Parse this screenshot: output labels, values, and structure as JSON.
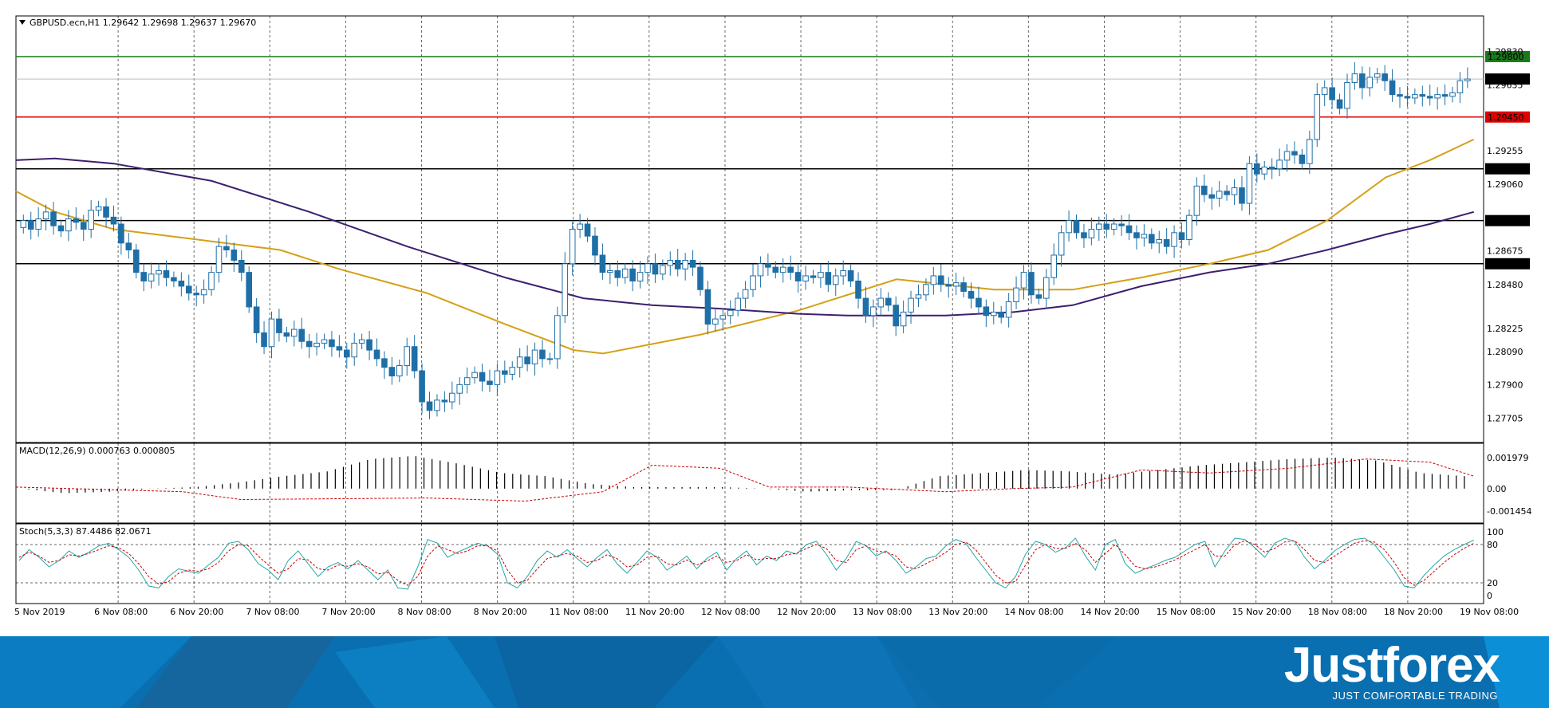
{
  "header": {
    "symbol_line": "GBPUSD.ecn,H1  1.29642 1.29698 1.29637 1.29670"
  },
  "branding": {
    "logo_text": "Justforex",
    "tagline": "JUST COMFORTABLE TRADING"
  },
  "colors": {
    "bull": "#ffffff",
    "bear": "#1f6fa7",
    "candle_outline": "#1f6fa7",
    "ma_fast": "#d4a017",
    "ma_slow": "#3c1f6e",
    "macd_signal": "#cc0000",
    "stoch_main": "#26a6a6",
    "stoch_signal": "#cc0000",
    "banner": "#0a74b8"
  },
  "chart_data": [
    {
      "type": "candlestick",
      "symbol": "GBPUSD.ecn",
      "timeframe": "H1",
      "ohlc_header": {
        "open": 1.29642,
        "high": 1.29698,
        "low": 1.29637,
        "close": 1.2967
      },
      "x_labels": [
        "5 Nov 2019",
        "6 Nov 08:00",
        "6 Nov 20:00",
        "7 Nov 08:00",
        "7 Nov 20:00",
        "8 Nov 08:00",
        "8 Nov 20:00",
        "11 Nov 08:00",
        "11 Nov 20:00",
        "12 Nov 08:00",
        "12 Nov 20:00",
        "13 Nov 08:00",
        "13 Nov 20:00",
        "14 Nov 08:00",
        "14 Nov 20:00",
        "15 Nov 08:00",
        "15 Nov 20:00",
        "18 Nov 08:00",
        "18 Nov 20:00",
        "19 Nov 08:00"
      ],
      "y_ticks": [
        "1.29830",
        "1.29635",
        "1.29255",
        "1.29060",
        "1.28675",
        "1.28480",
        "1.28225",
        "1.28090",
        "1.27900",
        "1.27705"
      ],
      "ylim": [
        1.2762,
        1.2998
      ],
      "levels": [
        {
          "value": 1.298,
          "label": "1.29800",
          "color": "#1a7a1a"
        },
        {
          "value": 1.2967,
          "label": "1.29670",
          "color": "#bbbbbb"
        },
        {
          "value": 1.2945,
          "label": "1.29450",
          "color": "#dd0000"
        },
        {
          "value": 1.2915,
          "label": "1.29150",
          "color": "#000000"
        },
        {
          "value": 1.2885,
          "label": "1.28850",
          "color": "#000000"
        },
        {
          "value": 1.286,
          "label": "1.28600",
          "color": "#000000"
        }
      ],
      "closes": [
        1.2885,
        1.288,
        1.2886,
        1.289,
        1.2882,
        1.2879,
        1.2886,
        1.2884,
        1.288,
        1.2891,
        1.2893,
        1.2887,
        1.2883,
        1.2872,
        1.2868,
        1.2855,
        1.285,
        1.2854,
        1.2856,
        1.2852,
        1.285,
        1.2847,
        1.2843,
        1.2842,
        1.2845,
        1.2855,
        1.287,
        1.2868,
        1.2862,
        1.2855,
        1.2835,
        1.282,
        1.2812,
        1.2828,
        1.282,
        1.2818,
        1.2822,
        1.2815,
        1.2812,
        1.2814,
        1.2816,
        1.2812,
        1.281,
        1.2806,
        1.2814,
        1.2816,
        1.281,
        1.2805,
        1.28,
        1.2795,
        1.2801,
        1.2812,
        1.2798,
        1.278,
        1.2775,
        1.2781,
        1.278,
        1.2785,
        1.279,
        1.2794,
        1.2797,
        1.2792,
        1.279,
        1.2798,
        1.2796,
        1.28,
        1.2806,
        1.2802,
        1.281,
        1.2805,
        1.2805,
        1.283,
        1.286,
        1.288,
        1.2883,
        1.2876,
        1.2865,
        1.2855,
        1.2856,
        1.2852,
        1.2857,
        1.285,
        1.2855,
        1.286,
        1.2854,
        1.2859,
        1.2862,
        1.2857,
        1.2862,
        1.2858,
        1.2845,
        1.2825,
        1.2828,
        1.283,
        1.2833,
        1.284,
        1.2845,
        1.2853,
        1.286,
        1.2858,
        1.2855,
        1.2858,
        1.2855,
        1.285,
        1.2853,
        1.2852,
        1.2855,
        1.2848,
        1.2853,
        1.2856,
        1.285,
        1.284,
        1.283,
        1.2835,
        1.284,
        1.2836,
        1.2824,
        1.2832,
        1.284,
        1.2842,
        1.2848,
        1.2853,
        1.2848,
        1.2847,
        1.2849,
        1.2844,
        1.284,
        1.2835,
        1.283,
        1.2832,
        1.2829,
        1.2838,
        1.2846,
        1.2855,
        1.2842,
        1.284,
        1.2852,
        1.2865,
        1.2878,
        1.2885,
        1.2878,
        1.2875,
        1.288,
        1.2883,
        1.288,
        1.2883,
        1.2882,
        1.2878,
        1.2875,
        1.2877,
        1.2872,
        1.2874,
        1.287,
        1.2878,
        1.2874,
        1.2888,
        1.2905,
        1.29,
        1.2898,
        1.2902,
        1.29,
        1.2904,
        1.2895,
        1.2918,
        1.2912,
        1.2916,
        1.2915,
        1.292,
        1.2925,
        1.2923,
        1.2918,
        1.2932,
        1.2958,
        1.2962,
        1.2955,
        1.295,
        1.2965,
        1.297,
        1.2962,
        1.2968,
        1.297,
        1.2966,
        1.2958,
        1.2957,
        1.2956,
        1.2958,
        1.2957,
        1.2956,
        1.2958,
        1.2957,
        1.2959,
        1.2966,
        1.2967
      ],
      "ma_fast": [
        [
          0,
          1.2902
        ],
        [
          40,
          1.289
        ],
        [
          100,
          1.288
        ],
        [
          200,
          1.2873
        ],
        [
          270,
          1.2868
        ],
        [
          330,
          1.2857
        ],
        [
          420,
          1.2843
        ],
        [
          500,
          1.2825
        ],
        [
          570,
          1.281
        ],
        [
          600,
          1.2808
        ],
        [
          700,
          1.2819
        ],
        [
          800,
          1.2833
        ],
        [
          900,
          1.2851
        ],
        [
          1000,
          1.2845
        ],
        [
          1080,
          1.2845
        ],
        [
          1150,
          1.2852
        ],
        [
          1220,
          1.286
        ],
        [
          1280,
          1.2868
        ],
        [
          1340,
          1.2885
        ],
        [
          1400,
          1.291
        ],
        [
          1445,
          1.292
        ],
        [
          1490,
          1.2932
        ]
      ],
      "ma_slow": [
        [
          0,
          1.292
        ],
        [
          40,
          1.2921
        ],
        [
          100,
          1.2918
        ],
        [
          200,
          1.2908
        ],
        [
          300,
          1.289
        ],
        [
          400,
          1.287
        ],
        [
          500,
          1.2852
        ],
        [
          580,
          1.284
        ],
        [
          650,
          1.2836
        ],
        [
          720,
          1.2834
        ],
        [
          800,
          1.2831
        ],
        [
          850,
          1.283
        ],
        [
          950,
          1.283
        ],
        [
          1020,
          1.2832
        ],
        [
          1080,
          1.2836
        ],
        [
          1150,
          1.2847
        ],
        [
          1220,
          1.2855
        ],
        [
          1280,
          1.286
        ],
        [
          1340,
          1.2868
        ],
        [
          1400,
          1.2877
        ],
        [
          1445,
          1.2883
        ],
        [
          1490,
          1.289
        ]
      ]
    },
    {
      "type": "histogram",
      "name": "MACD(12,26,9) 0.000763 0.000805",
      "y_ticks": [
        "0.001979",
        "0.00",
        "-0.001454"
      ],
      "ylim": [
        -0.0018,
        0.0025
      ],
      "values": [
        0.0,
        -0.0003,
        -0.0002,
        0.0,
        0.0001,
        0.0004,
        0.0008,
        0.0011,
        0.0019,
        0.0021,
        0.0016,
        0.001,
        0.0008,
        0.0003,
        0.0001,
        0.0001,
        0.0001,
        0.0,
        -0.0002,
        -0.0001,
        -0.0001,
        0.0008,
        0.001,
        0.0012,
        0.0011,
        0.0009,
        0.0012,
        0.0015,
        0.0017,
        0.0019,
        0.002,
        0.0018,
        0.001,
        0.0008
      ],
      "signal": [
        [
          0,
          0.0001
        ],
        [
          170,
          -0.0002
        ],
        [
          230,
          -0.0007
        ],
        [
          420,
          -0.0006
        ],
        [
          520,
          -0.0008
        ],
        [
          600,
          -0.0002
        ],
        [
          650,
          0.0015
        ],
        [
          720,
          0.0013
        ],
        [
          770,
          0.0001
        ],
        [
          850,
          0.0001
        ],
        [
          950,
          -0.0002
        ],
        [
          1020,
          0.0
        ],
        [
          1080,
          0.0001
        ],
        [
          1150,
          0.0012
        ],
        [
          1220,
          0.001
        ],
        [
          1300,
          0.0013
        ],
        [
          1380,
          0.0019
        ],
        [
          1445,
          0.0017
        ],
        [
          1490,
          0.0008
        ]
      ]
    },
    {
      "type": "line",
      "name": "Stoch(5,3,3) 87.4486 82.0671",
      "y_ticks": [
        "100",
        "80",
        "20",
        "0"
      ],
      "ylim": [
        0,
        100
      ],
      "main": [
        55,
        72,
        60,
        45,
        55,
        70,
        60,
        68,
        78,
        82,
        72,
        60,
        40,
        15,
        12,
        30,
        42,
        38,
        35,
        48,
        60,
        82,
        85,
        72,
        50,
        40,
        25,
        55,
        70,
        50,
        30,
        45,
        52,
        42,
        55,
        40,
        25,
        40,
        12,
        10,
        45,
        88,
        82,
        60,
        68,
        75,
        82,
        78,
        65,
        20,
        12,
        30,
        55,
        70,
        60,
        72,
        58,
        45,
        60,
        72,
        50,
        35,
        52,
        70,
        60,
        40,
        50,
        62,
        42,
        58,
        68,
        40,
        58,
        70,
        48,
        62,
        55,
        70,
        65,
        80,
        85,
        65,
        40,
        58,
        85,
        78,
        62,
        70,
        55,
        35,
        45,
        58,
        62,
        78,
        88,
        82,
        60,
        40,
        20,
        12,
        30,
        65,
        85,
        80,
        68,
        75,
        90,
        62,
        40,
        80,
        88,
        50,
        35,
        42,
        48,
        55,
        60,
        70,
        80,
        85,
        45,
        70,
        90,
        88,
        75,
        60,
        82,
        90,
        85,
        60,
        42,
        55,
        70,
        80,
        88,
        90,
        80,
        60,
        40,
        15,
        12,
        32,
        48,
        62,
        72,
        80,
        87
      ],
      "signal": [
        60,
        68,
        62,
        52,
        55,
        64,
        62,
        66,
        72,
        78,
        75,
        66,
        50,
        30,
        18,
        22,
        35,
        40,
        38,
        42,
        52,
        70,
        80,
        78,
        62,
        48,
        35,
        42,
        58,
        56,
        42,
        40,
        48,
        46,
        50,
        45,
        34,
        36,
        24,
        16,
        30,
        62,
        78,
        72,
        66,
        70,
        78,
        78,
        70,
        40,
        20,
        24,
        42,
        58,
        62,
        66,
        62,
        52,
        55,
        64,
        58,
        45,
        48,
        60,
        62,
        50,
        48,
        56,
        48,
        54,
        62,
        52,
        55,
        64,
        56,
        58,
        58,
        64,
        66,
        74,
        80,
        74,
        55,
        52,
        72,
        78,
        70,
        68,
        62,
        45,
        42,
        50,
        58,
        68,
        80,
        84,
        72,
        52,
        32,
        20,
        22,
        48,
        72,
        80,
        74,
        74,
        82,
        72,
        52,
        66,
        80,
        64,
        46,
        42,
        45,
        50,
        56,
        64,
        72,
        80,
        62,
        62,
        80,
        86,
        80,
        68,
        74,
        84,
        86,
        72,
        55,
        52,
        62,
        72,
        82,
        86,
        84,
        72,
        52,
        28,
        16,
        24,
        38,
        52,
        64,
        74,
        82
      ]
    }
  ]
}
